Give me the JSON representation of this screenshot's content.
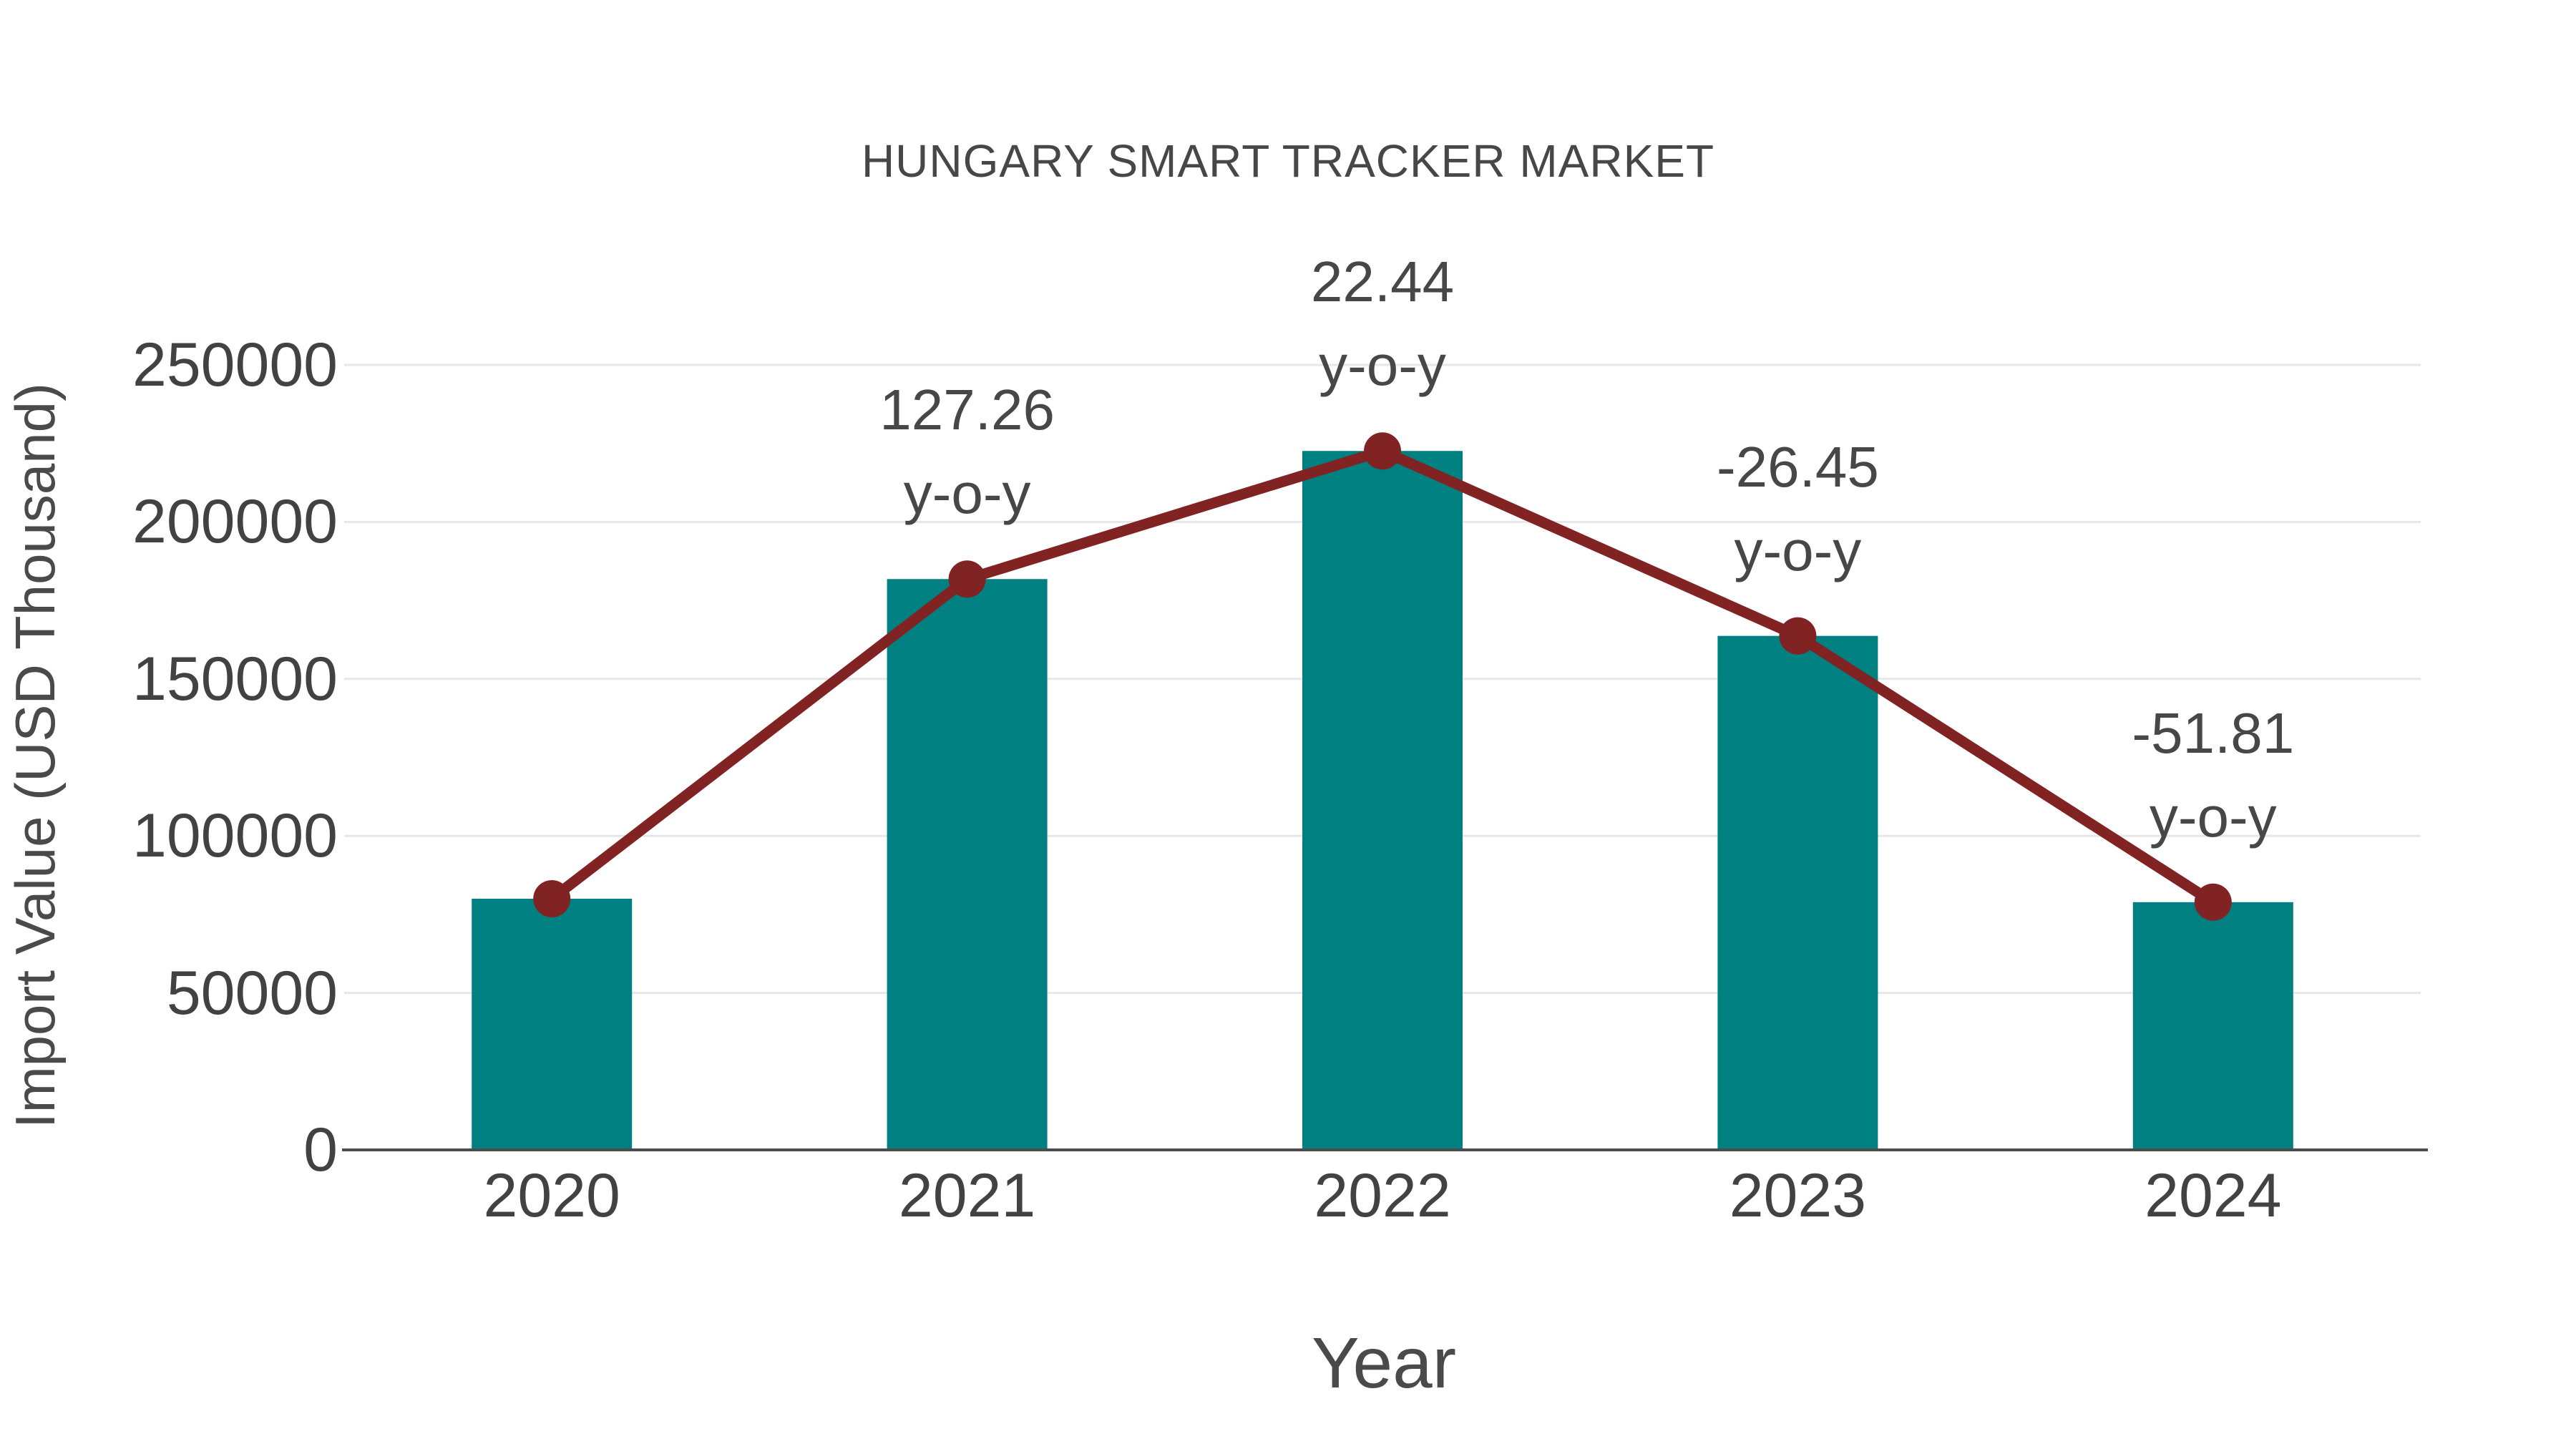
{
  "chart_data": {
    "type": "bar",
    "title": "HUNGARY SMART TRACKER MARKET",
    "xlabel": "Year",
    "ylabel": "Import Value (USD Thousand)",
    "categories": [
      "2020",
      "2021",
      "2022",
      "2023",
      "2024"
    ],
    "values": [
      80000,
      181800,
      222600,
      163700,
      78900
    ],
    "ylim": [
      0,
      250000
    ],
    "yticks": [
      0,
      50000,
      100000,
      150000,
      200000,
      250000
    ],
    "ytick_labels": [
      "0",
      "50000",
      "100000",
      "150000",
      "200000",
      "250000"
    ],
    "grid": true,
    "legend": "none",
    "bar_color": "#008080",
    "line_color": "#812322",
    "line_overlay": "line with round markers connecting bar tops",
    "annotations": [
      {
        "category": "2021",
        "value_text": "127.26",
        "label": "y-o-y"
      },
      {
        "category": "2022",
        "value_text": "22.44",
        "label": "y-o-y"
      },
      {
        "category": "2023",
        "value_text": "-26.45",
        "label": "y-o-y"
      },
      {
        "category": "2024",
        "value_text": "-51.81",
        "label": "y-o-y"
      }
    ],
    "yoy_percent": [
      null,
      127.26,
      22.44,
      -26.45,
      -51.81
    ]
  }
}
